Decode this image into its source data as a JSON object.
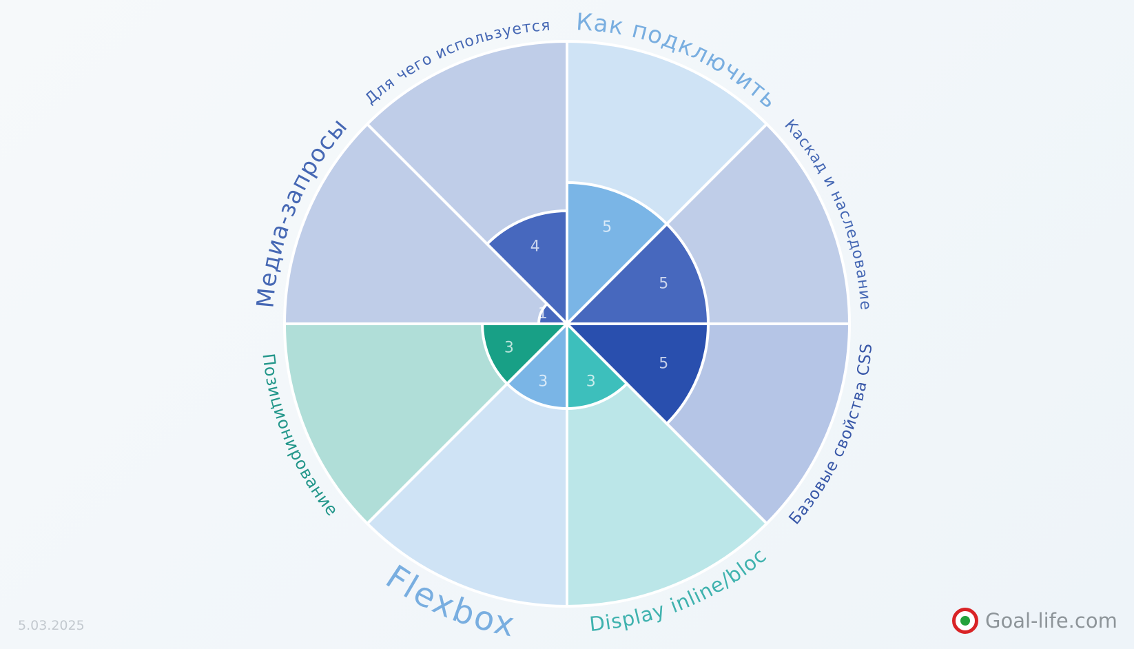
{
  "chart_data": {
    "type": "polar-area",
    "rmax": 10,
    "segments": [
      {
        "label": "Как подключить",
        "value": 5,
        "color": "#7ab5e6",
        "bg": "#cfe3f5",
        "labelColor": "#79aee0",
        "labelSize": 34
      },
      {
        "label": "Каскад и наследование",
        "value": 5,
        "color": "#4768be",
        "bg": "#bfcde8",
        "labelColor": "#4668b4",
        "labelSize": 22
      },
      {
        "label": "Базовые свойства CSS",
        "value": 5,
        "color": "#294fae",
        "bg": "#b5c5e6",
        "labelColor": "#3958a8",
        "labelSize": 23
      },
      {
        "label": "Display inline/bloc",
        "value": 3,
        "color": "#3dbfbc",
        "bg": "#bbe6e8",
        "labelColor": "#3fb2ae",
        "labelSize": 29
      },
      {
        "label": "Flexbox",
        "value": 3,
        "color": "#7ab5e6",
        "bg": "#cfe3f5",
        "labelColor": "#79aee0",
        "labelSize": 48
      },
      {
        "label": "Позиционирование",
        "value": 3,
        "color": "#18a086",
        "bg": "#b0ded8",
        "labelColor": "#22968a",
        "labelSize": 24
      },
      {
        "label": "Медиа-запросы",
        "value": 1,
        "color": "#4768be",
        "bg": "#bfcde8",
        "labelColor": "#4668b4",
        "labelSize": 34
      },
      {
        "label": "Для чего используется",
        "value": 4,
        "color": "#4768be",
        "bg": "#bfcde8",
        "labelColor": "#4668b4",
        "labelSize": 22
      }
    ]
  },
  "footer": {
    "date": "5.03.2025",
    "brand": "Goal-life.com"
  }
}
